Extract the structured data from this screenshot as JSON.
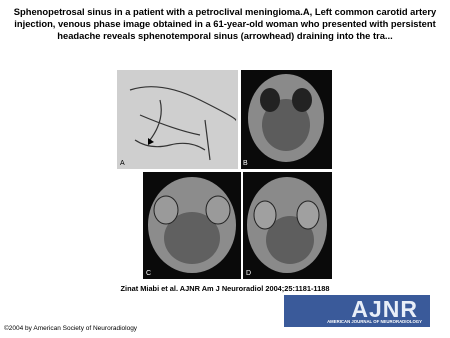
{
  "header": {
    "title": "Sphenopetrosal sinus in a patient with a petroclival meningioma.A, Left common carotid artery injection, venous phase image obtained in a 61-year-old woman who presented with persistent headache reveals sphenotemporal sinus (arrowhead) draining into the tra..."
  },
  "figure": {
    "panels": [
      {
        "label": "A"
      },
      {
        "label": "B"
      },
      {
        "label": "C"
      },
      {
        "label": "D"
      }
    ],
    "citation": "Zinat Miabi et al. AJNR Am J Neuroradiol 2004;25:1181-1188"
  },
  "logo": {
    "name": "AJNR",
    "subtitle": "AMERICAN JOURNAL OF NEURORADIOLOGY"
  },
  "footer": {
    "copyright": "©2004 by American Society of Neuroradiology"
  }
}
